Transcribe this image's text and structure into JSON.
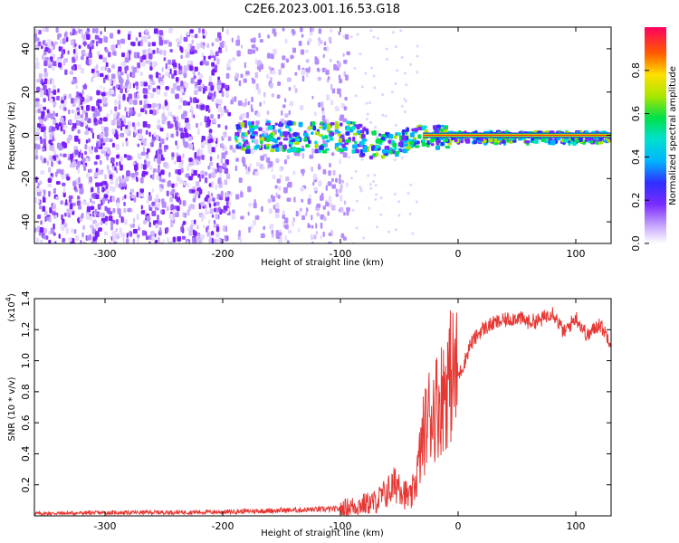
{
  "title": "C2E6.2023.001.16.53.G18",
  "chart_data": [
    {
      "type": "heatmap",
      "xlabel": "Height of straight line (km)",
      "ylabel": "Frequency (Hz)",
      "xlim": [
        -360,
        130
      ],
      "ylim": [
        -50,
        50
      ],
      "x_ticks": [
        -300,
        -200,
        -100,
        0,
        100
      ],
      "y_ticks": [
        -40,
        -20,
        0,
        20,
        40
      ],
      "colorbar": {
        "label": "Normalized spectral amplitude",
        "range": [
          0.0,
          1.0
        ],
        "ticks": [
          "0.0",
          "0.2",
          "0.4",
          "0.6",
          "0.8"
        ]
      },
      "features": {
        "noise_region_x": [
          -360,
          -95
        ],
        "signal_band_start_x": -190,
        "signal_frequency_hz": 0
      }
    },
    {
      "type": "line",
      "xlabel": "Height of straight line (km)",
      "ylabel": "SNR (10 * v/v)",
      "scale_label": "(x10",
      "scale_exponent": "4",
      "xlim": [
        -360,
        130
      ],
      "ylim": [
        0,
        14000
      ],
      "x_ticks": [
        -300,
        -200,
        -100,
        0,
        100
      ],
      "y_ticks": [
        "0.2",
        "0.4",
        "0.6",
        "0.8",
        "1.0",
        "1.2",
        "1.4"
      ],
      "color": "#e53935",
      "x": [
        -360,
        -300,
        -200,
        -150,
        -100,
        -70,
        -50,
        -45,
        -40,
        -35,
        -30,
        -25,
        -20,
        -15,
        -10,
        -5,
        0,
        5,
        10,
        20,
        30,
        40,
        50,
        60,
        70,
        80,
        90,
        100,
        110,
        120,
        130
      ],
      "y": [
        150,
        200,
        250,
        350,
        450,
        900,
        2200,
        1400,
        1100,
        2600,
        5000,
        6500,
        7000,
        7500,
        8500,
        9200,
        9000,
        9800,
        11000,
        12000,
        12400,
        12600,
        12800,
        12500,
        12600,
        13200,
        11800,
        12800,
        11600,
        12400,
        11200
      ]
    }
  ]
}
